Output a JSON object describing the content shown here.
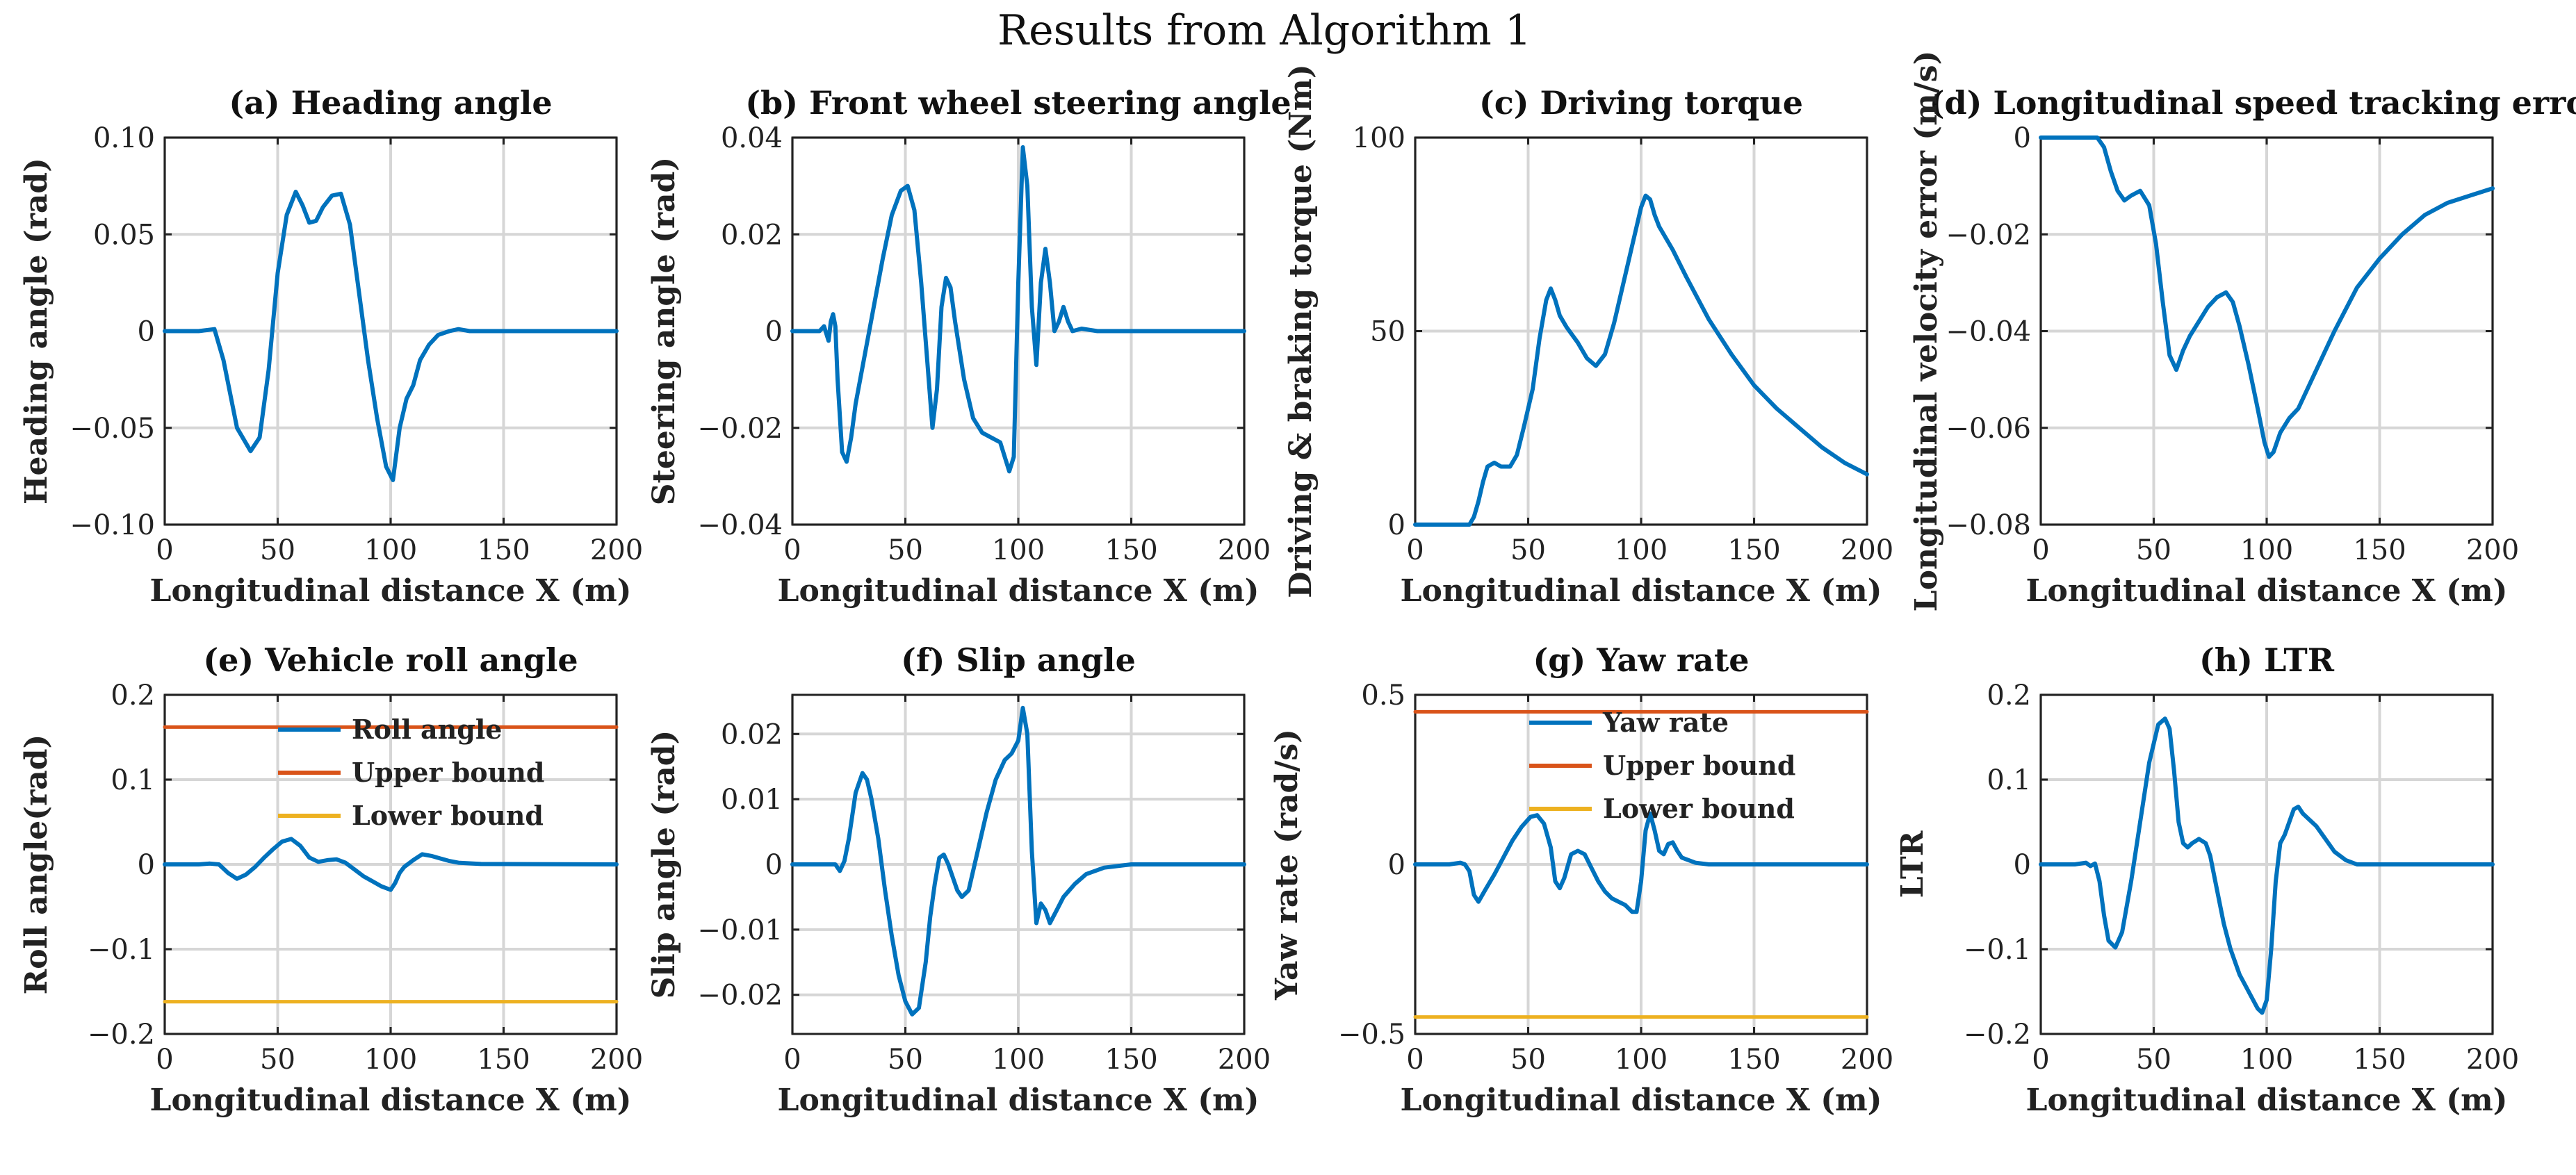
{
  "suptitle": "Results from Algorithm 1",
  "chart_data": [
    {
      "id": "a",
      "type": "line",
      "title": "(a) Heading angle",
      "xlabel": "Longitudinal distance X (m)",
      "ylabel": "Heading angle (rad)",
      "xlim": [
        0,
        200
      ],
      "ylim": [
        -0.1,
        0.1
      ],
      "xticks": [
        0,
        50,
        100,
        150,
        200
      ],
      "yticks": [
        -0.1,
        -0.05,
        0,
        0.05,
        0.1
      ],
      "yticklabels": [
        "−0.10",
        "−0.05",
        "0",
        "0.05",
        "0.10"
      ],
      "series": [
        {
          "name": "Heading angle",
          "color": "#0072BD",
          "x": [
            0,
            15,
            22,
            26,
            32,
            38,
            42,
            46,
            50,
            54,
            58,
            61,
            64,
            67,
            70,
            74,
            78,
            82,
            86,
            90,
            94,
            98,
            101,
            104,
            107,
            110,
            113,
            117,
            121,
            126,
            130,
            135,
            150,
            200
          ],
          "y": [
            0,
            0,
            0.001,
            -0.015,
            -0.05,
            -0.062,
            -0.055,
            -0.02,
            0.03,
            0.06,
            0.072,
            0.065,
            0.056,
            0.057,
            0.064,
            0.07,
            0.071,
            0.055,
            0.02,
            -0.015,
            -0.045,
            -0.07,
            -0.077,
            -0.05,
            -0.035,
            -0.028,
            -0.015,
            -0.007,
            -0.002,
            0,
            0.001,
            0,
            0,
            0
          ]
        }
      ]
    },
    {
      "id": "b",
      "type": "line",
      "title": "(b) Front wheel steering angle",
      "xlabel": "Longitudinal distance X (m)",
      "ylabel": "Steering angle (rad)",
      "xlim": [
        0,
        200
      ],
      "ylim": [
        -0.04,
        0.04
      ],
      "xticks": [
        0,
        50,
        100,
        150,
        200
      ],
      "yticks": [
        -0.04,
        -0.02,
        0,
        0.02,
        0.04
      ],
      "yticklabels": [
        "−0.04",
        "−0.02",
        "0",
        "0.02",
        "0.04"
      ],
      "series": [
        {
          "name": "Steering angle",
          "color": "#0072BD",
          "x": [
            0,
            12,
            14,
            16,
            17,
            18,
            19,
            20,
            22,
            24,
            26,
            28,
            32,
            36,
            40,
            44,
            48,
            51,
            54,
            57,
            60,
            62,
            64,
            66,
            68,
            70,
            72,
            76,
            80,
            84,
            88,
            92,
            96,
            98,
            100,
            102,
            104,
            106,
            108,
            110,
            112,
            114,
            116,
            118,
            120,
            122,
            124,
            128,
            135,
            200
          ],
          "y": [
            0,
            0,
            0.001,
            -0.002,
            0.002,
            0.0035,
            0.001,
            -0.01,
            -0.025,
            -0.027,
            -0.022,
            -0.015,
            -0.005,
            0.005,
            0.015,
            0.024,
            0.029,
            0.03,
            0.025,
            0.01,
            -0.008,
            -0.02,
            -0.012,
            0.005,
            0.011,
            0.009,
            0.002,
            -0.01,
            -0.018,
            -0.021,
            -0.022,
            -0.023,
            -0.029,
            -0.026,
            0.01,
            0.038,
            0.03,
            0.005,
            -0.007,
            0.01,
            0.017,
            0.01,
            0.0,
            0.002,
            0.005,
            0.002,
            0.0,
            0.0005,
            0,
            0
          ]
        }
      ]
    },
    {
      "id": "c",
      "type": "line",
      "title": "(c) Driving torque",
      "xlabel": "Longitudinal distance X (m)",
      "ylabel": "Driving & braking torque (Nm)",
      "xlim": [
        0,
        200
      ],
      "ylim": [
        0,
        100
      ],
      "xticks": [
        0,
        50,
        100,
        150,
        200
      ],
      "yticks": [
        0,
        50,
        100
      ],
      "yticklabels": [
        "0",
        "50",
        "100"
      ],
      "series": [
        {
          "name": "Torque",
          "color": "#0072BD",
          "x": [
            0,
            22,
            24,
            26,
            28,
            30,
            32,
            35,
            38,
            42,
            45,
            48,
            52,
            55,
            58,
            60,
            62,
            64,
            67,
            72,
            76,
            80,
            84,
            88,
            92,
            96,
            100,
            102,
            104,
            106,
            108,
            110,
            114,
            120,
            130,
            140,
            150,
            160,
            170,
            180,
            190,
            200
          ],
          "y": [
            0,
            0,
            0,
            2,
            6,
            11,
            15,
            16,
            15,
            15,
            18,
            25,
            35,
            48,
            58,
            61,
            58,
            54,
            51,
            47,
            43,
            41,
            44,
            52,
            62,
            72,
            82,
            85,
            84,
            80,
            77,
            75,
            71,
            64,
            53,
            44,
            36,
            30,
            25,
            20,
            16,
            13
          ]
        }
      ]
    },
    {
      "id": "d",
      "type": "line",
      "title": "(d) Longitudinal speed tracking error",
      "xlabel": "Longitudinal distance X (m)",
      "ylabel": "Longitudinal velocity error (m/s)",
      "xlim": [
        0,
        200
      ],
      "ylim": [
        -0.08,
        0
      ],
      "xticks": [
        0,
        50,
        100,
        150,
        200
      ],
      "yticks": [
        -0.08,
        -0.06,
        -0.04,
        -0.02,
        0
      ],
      "yticklabels": [
        "−0.08",
        "−0.06",
        "−0.04",
        "−0.02",
        "0"
      ],
      "series": [
        {
          "name": "Velocity error",
          "color": "#0072BD",
          "x": [
            0,
            22,
            25,
            28,
            31,
            34,
            37,
            40,
            44,
            48,
            51,
            54,
            57,
            60,
            63,
            66,
            70,
            74,
            78,
            82,
            85,
            88,
            92,
            96,
            99,
            101,
            103,
            106,
            110,
            114,
            120,
            130,
            140,
            150,
            160,
            170,
            180,
            190,
            200
          ],
          "y": [
            0,
            0,
            0,
            -0.002,
            -0.007,
            -0.011,
            -0.013,
            -0.012,
            -0.011,
            -0.014,
            -0.022,
            -0.034,
            -0.045,
            -0.048,
            -0.044,
            -0.041,
            -0.038,
            -0.035,
            -0.033,
            -0.032,
            -0.034,
            -0.039,
            -0.047,
            -0.056,
            -0.063,
            -0.066,
            -0.065,
            -0.061,
            -0.058,
            -0.056,
            -0.05,
            -0.04,
            -0.031,
            -0.025,
            -0.02,
            -0.016,
            -0.0135,
            -0.012,
            -0.0105
          ]
        }
      ]
    },
    {
      "id": "e",
      "type": "line",
      "title": "(e) Vehicle roll angle",
      "xlabel": "Longitudinal distance X (m)",
      "ylabel": "Roll angle(rad)",
      "xlim": [
        0,
        200
      ],
      "ylim": [
        -0.2,
        0.2
      ],
      "xticks": [
        0,
        50,
        100,
        150,
        200
      ],
      "yticks": [
        -0.2,
        -0.1,
        0,
        0.1,
        0.2
      ],
      "yticklabels": [
        "−0.2",
        "−0.1",
        "0",
        "0.1",
        "0.2"
      ],
      "legend": {
        "location": "upper-center",
        "entries": [
          "Roll angle",
          "Upper bound",
          "Lower bound"
        ]
      },
      "series": [
        {
          "name": "Roll angle",
          "color": "#0072BD",
          "x": [
            0,
            15,
            20,
            24,
            28,
            32,
            36,
            40,
            44,
            48,
            52,
            56,
            60,
            64,
            68,
            72,
            76,
            80,
            84,
            88,
            92,
            96,
            100,
            102,
            104,
            106,
            110,
            114,
            118,
            122,
            126,
            130,
            140,
            200
          ],
          "y": [
            0,
            0,
            0.001,
            0.0,
            -0.01,
            -0.017,
            -0.012,
            -0.003,
            0.008,
            0.018,
            0.027,
            0.03,
            0.022,
            0.008,
            0.003,
            0.005,
            0.006,
            0.002,
            -0.006,
            -0.014,
            -0.02,
            -0.026,
            -0.03,
            -0.022,
            -0.01,
            -0.003,
            0.005,
            0.012,
            0.01,
            0.007,
            0.004,
            0.002,
            0.0005,
            0
          ]
        },
        {
          "name": "Upper bound",
          "color": "#D95319",
          "x": [
            0,
            200
          ],
          "y": [
            0.162,
            0.162
          ]
        },
        {
          "name": "Lower bound",
          "color": "#EDB120",
          "x": [
            0,
            200
          ],
          "y": [
            -0.162,
            -0.162
          ]
        }
      ]
    },
    {
      "id": "f",
      "type": "line",
      "title": "(f) Slip angle",
      "xlabel": "Longitudinal distance X (m)",
      "ylabel": "Slip angle (rad)",
      "xlim": [
        0,
        200
      ],
      "ylim": [
        -0.026,
        0.026
      ],
      "xticks": [
        0,
        50,
        100,
        150,
        200
      ],
      "yticks": [
        -0.02,
        -0.01,
        0,
        0.01,
        0.02
      ],
      "yticklabels": [
        "−0.02",
        "−0.01",
        "0",
        "0.01",
        "0.02"
      ],
      "series": [
        {
          "name": "Slip angle",
          "color": "#0072BD",
          "x": [
            0,
            15,
            19,
            21,
            23,
            25,
            28,
            31,
            33,
            35,
            38,
            41,
            44,
            47,
            50,
            53,
            56,
            59,
            61,
            63,
            65,
            67,
            69,
            71,
            73,
            75,
            78,
            82,
            86,
            90,
            94,
            97,
            100,
            102,
            104,
            106,
            108,
            110,
            112,
            114,
            117,
            120,
            125,
            130,
            138,
            150,
            200
          ],
          "y": [
            0,
            0,
            0.0,
            -0.001,
            0.0005,
            0.004,
            0.011,
            0.014,
            0.013,
            0.01,
            0.004,
            -0.004,
            -0.011,
            -0.017,
            -0.021,
            -0.023,
            -0.022,
            -0.015,
            -0.008,
            -0.003,
            0.001,
            0.0015,
            0.0,
            -0.002,
            -0.004,
            -0.005,
            -0.004,
            0.002,
            0.008,
            0.013,
            0.016,
            0.017,
            0.019,
            0.024,
            0.02,
            0.002,
            -0.009,
            -0.006,
            -0.007,
            -0.009,
            -0.007,
            -0.005,
            -0.003,
            -0.0015,
            -0.0005,
            0,
            0
          ]
        }
      ]
    },
    {
      "id": "g",
      "type": "line",
      "title": "(g) Yaw rate",
      "xlabel": "Longitudinal distance X (m)",
      "ylabel": "Yaw rate (rad/s)",
      "xlim": [
        0,
        200
      ],
      "ylim": [
        -0.5,
        0.5
      ],
      "xticks": [
        0,
        50,
        100,
        150,
        200
      ],
      "yticks": [
        -0.5,
        0,
        0.5
      ],
      "yticklabels": [
        "−0.5",
        "0",
        "0.5"
      ],
      "legend": {
        "location": "upper-center",
        "entries": [
          "Yaw rate",
          "Upper bound",
          "Lower bound"
        ]
      },
      "series": [
        {
          "name": "Yaw rate",
          "color": "#0072BD",
          "x": [
            0,
            15,
            20,
            22,
            24,
            26,
            28,
            31,
            35,
            39,
            43,
            47,
            51,
            54,
            57,
            60,
            62,
            64,
            66,
            69,
            72,
            75,
            78,
            81,
            84,
            87,
            90,
            93,
            96,
            98,
            100,
            102,
            104,
            106,
            108,
            110,
            112,
            114,
            116,
            118,
            120,
            124,
            130,
            200
          ],
          "y": [
            0,
            0,
            0.005,
            0.0,
            -0.02,
            -0.09,
            -0.11,
            -0.075,
            -0.03,
            0.02,
            0.07,
            0.11,
            0.14,
            0.145,
            0.12,
            0.05,
            -0.05,
            -0.07,
            -0.04,
            0.03,
            0.04,
            0.03,
            -0.01,
            -0.05,
            -0.08,
            -0.1,
            -0.11,
            -0.12,
            -0.14,
            -0.14,
            -0.05,
            0.1,
            0.15,
            0.1,
            0.04,
            0.03,
            0.06,
            0.065,
            0.04,
            0.02,
            0.015,
            0.005,
            0.0,
            0
          ]
        },
        {
          "name": "Upper bound",
          "color": "#D95319",
          "x": [
            0,
            200
          ],
          "y": [
            0.45,
            0.45
          ]
        },
        {
          "name": "Lower bound",
          "color": "#EDB120",
          "x": [
            0,
            200
          ],
          "y": [
            -0.45,
            -0.45
          ]
        }
      ]
    },
    {
      "id": "h",
      "type": "line",
      "title": "(h) LTR",
      "xlabel": "Longitudinal distance X (m)",
      "ylabel": "LTR",
      "xlim": [
        0,
        200
      ],
      "ylim": [
        -0.2,
        0.2
      ],
      "xticks": [
        0,
        50,
        100,
        150,
        200
      ],
      "yticks": [
        -0.2,
        -0.1,
        0,
        0.1,
        0.2
      ],
      "yticklabels": [
        "−0.2",
        "−0.1",
        "0",
        "0.1",
        "0.2"
      ],
      "series": [
        {
          "name": "LTR",
          "color": "#0072BD",
          "x": [
            0,
            15,
            20,
            22,
            24,
            26,
            28,
            30,
            33,
            36,
            40,
            44,
            48,
            52,
            55,
            57,
            59,
            61,
            63,
            65,
            67,
            70,
            73,
            75,
            78,
            81,
            84,
            88,
            92,
            96,
            98,
            100,
            102,
            104,
            106,
            108,
            110,
            112,
            114,
            116,
            118,
            122,
            126,
            130,
            135,
            140,
            150,
            200
          ],
          "y": [
            0,
            0,
            0.002,
            -0.002,
            0.001,
            -0.02,
            -0.06,
            -0.09,
            -0.098,
            -0.08,
            -0.02,
            0.05,
            0.12,
            0.165,
            0.172,
            0.16,
            0.11,
            0.05,
            0.025,
            0.02,
            0.025,
            0.03,
            0.025,
            0.01,
            -0.03,
            -0.07,
            -0.1,
            -0.13,
            -0.15,
            -0.17,
            -0.175,
            -0.16,
            -0.1,
            -0.02,
            0.025,
            0.035,
            0.05,
            0.065,
            0.068,
            0.06,
            0.055,
            0.045,
            0.03,
            0.015,
            0.005,
            0.0,
            0,
            0
          ]
        }
      ]
    }
  ]
}
